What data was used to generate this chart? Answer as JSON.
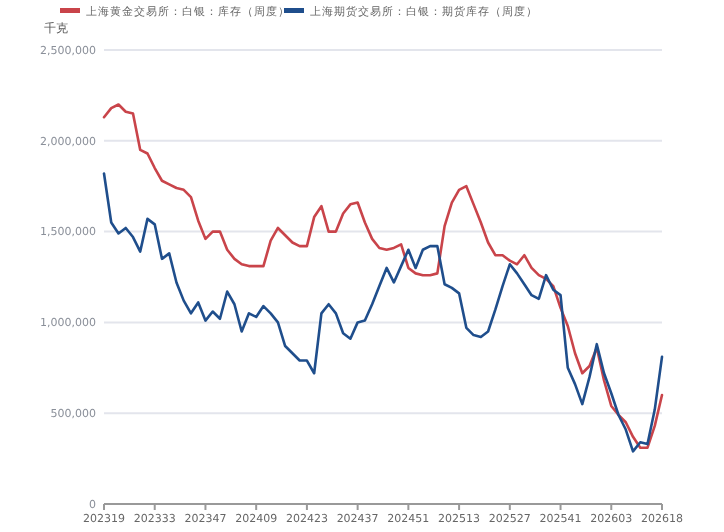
{
  "chart_data": {
    "type": "line",
    "ylabel": "千克",
    "categories": [
      "202319",
      null,
      null,
      null,
      null,
      null,
      null,
      "202333",
      null,
      null,
      null,
      null,
      null,
      null,
      "202347",
      null,
      null,
      null,
      null,
      null,
      null,
      "202409",
      null,
      null,
      null,
      null,
      null,
      null,
      "202423",
      null,
      null,
      null,
      null,
      null,
      null,
      "202437",
      null,
      null,
      null,
      null,
      null,
      null,
      "202451",
      null,
      null,
      null,
      null,
      null,
      null,
      "202513",
      null,
      null,
      null,
      null,
      null,
      null,
      "202527",
      null,
      null,
      null,
      null,
      null,
      null,
      "202541",
      null,
      null,
      null,
      null,
      null,
      null,
      "202603",
      null,
      null,
      null,
      null,
      null,
      null,
      "202618"
    ],
    "series": [
      {
        "name": "上海黄金交易所：白银：库存（周度）",
        "color": "#c9444a",
        "values": [
          2130000,
          2180000,
          2200000,
          2160000,
          2150000,
          1950000,
          1930000,
          1850000,
          1780000,
          1760000,
          1740000,
          1730000,
          1690000,
          1560000,
          1460000,
          1500000,
          1500000,
          1400000,
          1350000,
          1320000,
          1310000,
          1310000,
          1310000,
          1450000,
          1520000,
          1480000,
          1440000,
          1420000,
          1420000,
          1580000,
          1640000,
          1500000,
          1500000,
          1600000,
          1650000,
          1660000,
          1550000,
          1460000,
          1410000,
          1400000,
          1410000,
          1430000,
          1300000,
          1270000,
          1260000,
          1260000,
          1270000,
          1530000,
          1660000,
          1730000,
          1750000,
          1650000,
          1550000,
          1440000,
          1370000,
          1370000,
          1340000,
          1320000,
          1370000,
          1300000,
          1260000,
          1240000,
          1200000,
          1080000,
          980000,
          830000,
          720000,
          760000,
          860000,
          680000,
          540000,
          490000,
          450000,
          370000,
          310000,
          310000,
          430000,
          600000
        ]
      },
      {
        "name": "上海期货交易所：白银：期货库存（周度）",
        "color": "#1f4e8c",
        "values": [
          1820000,
          1550000,
          1490000,
          1520000,
          1470000,
          1390000,
          1570000,
          1540000,
          1350000,
          1380000,
          1220000,
          1120000,
          1050000,
          1110000,
          1010000,
          1060000,
          1020000,
          1170000,
          1100000,
          950000,
          1050000,
          1030000,
          1090000,
          1050000,
          1000000,
          870000,
          830000,
          790000,
          790000,
          720000,
          1050000,
          1100000,
          1050000,
          940000,
          910000,
          1000000,
          1010000,
          1100000,
          1200000,
          1300000,
          1220000,
          1310000,
          1400000,
          1300000,
          1400000,
          1420000,
          1420000,
          1210000,
          1190000,
          1160000,
          970000,
          930000,
          920000,
          950000,
          1070000,
          1200000,
          1320000,
          1270000,
          1210000,
          1150000,
          1130000,
          1260000,
          1180000,
          1150000,
          750000,
          660000,
          550000,
          700000,
          880000,
          720000,
          610000,
          490000,
          410000,
          290000,
          340000,
          330000,
          520000,
          810000
        ]
      }
    ],
    "ylim": [
      0,
      2500000
    ],
    "yticks": [
      {
        "value": 0,
        "label": "0"
      },
      {
        "value": 500000,
        "label": "500,000"
      },
      {
        "value": 1000000,
        "label": "1,000,000"
      },
      {
        "value": 1500000,
        "label": "1,500,000"
      },
      {
        "value": 2000000,
        "label": "2,000,000"
      },
      {
        "value": 2500000,
        "label": "2,500,000"
      }
    ],
    "grid": "y",
    "legend": "top left"
  }
}
